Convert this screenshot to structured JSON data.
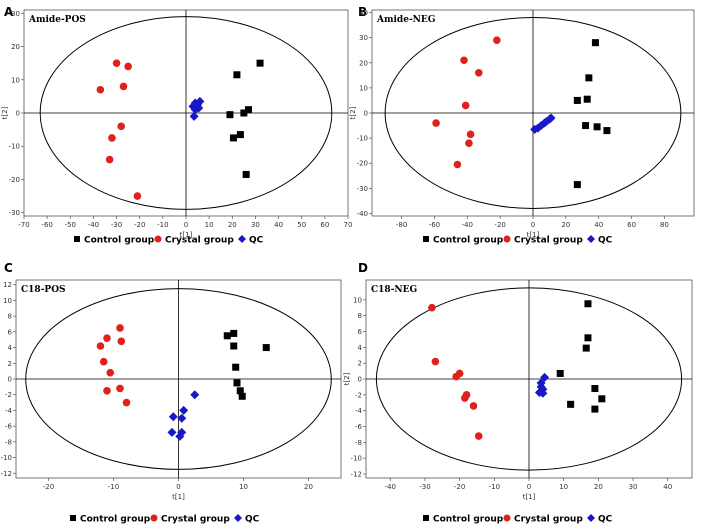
{
  "legend_colors": {
    "control": "#000000",
    "crystal": "#e0201b",
    "qc": "#1818c8"
  },
  "chart_data": [
    {
      "type": "scatter",
      "panel": "A",
      "title": "Amide-POS",
      "xlabel": "t[1]",
      "ylabel": "t[2]",
      "xlim": [
        -70,
        70
      ],
      "ylim": [
        -31,
        31
      ],
      "xticks": [
        -70,
        -60,
        -50,
        -40,
        -30,
        -20,
        -10,
        0,
        10,
        20,
        30,
        40,
        50,
        60,
        70
      ],
      "yticks": [
        -30,
        -20,
        -10,
        0,
        10,
        20,
        30
      ],
      "ellipse": {
        "rx": 63,
        "ry": 29
      },
      "legend": [
        "Control group",
        "Crystal group",
        "QC"
      ],
      "series": [
        {
          "name": "Control group",
          "points": [
            [
              32,
              15
            ],
            [
              22,
              11.5
            ],
            [
              19,
              -0.5
            ],
            [
              25,
              0
            ],
            [
              27,
              1
            ],
            [
              20.5,
              -7.5
            ],
            [
              23.5,
              -6.5
            ],
            [
              26,
              -18.5
            ]
          ]
        },
        {
          "name": "Crystal group",
          "points": [
            [
              -30,
              15
            ],
            [
              -25,
              14
            ],
            [
              -37,
              7
            ],
            [
              -27,
              8
            ],
            [
              -28,
              -4
            ],
            [
              -32,
              -7.5
            ],
            [
              -33,
              -14
            ],
            [
              -21,
              -25
            ]
          ]
        },
        {
          "name": "QC",
          "points": [
            [
              3,
              2
            ],
            [
              4,
              3
            ],
            [
              5,
              2.5
            ],
            [
              6,
              3.5
            ],
            [
              5.5,
              1.5
            ],
            [
              4,
              1
            ],
            [
              3.5,
              -1
            ]
          ]
        }
      ]
    },
    {
      "type": "scatter",
      "panel": "B",
      "title": "Amide-NEG",
      "xlabel": "t[1]",
      "ylabel": "t[2]",
      "xlim": [
        -98,
        98
      ],
      "ylim": [
        -41,
        41
      ],
      "xticks": [
        -80,
        -60,
        -40,
        -20,
        0,
        20,
        40,
        60,
        80
      ],
      "yticks": [
        -40,
        -30,
        -20,
        -10,
        0,
        10,
        20,
        30,
        40
      ],
      "ellipse": {
        "rx": 90,
        "ry": 38
      },
      "legend": [
        "Control group",
        "Crystal group",
        "QC"
      ],
      "series": [
        {
          "name": "Control group",
          "points": [
            [
              38,
              28
            ],
            [
              34,
              14
            ],
            [
              33,
              5.5
            ],
            [
              27,
              5
            ],
            [
              32,
              -5
            ],
            [
              39,
              -5.5
            ],
            [
              45,
              -7
            ],
            [
              27,
              -28.5
            ]
          ]
        },
        {
          "name": "Crystal group",
          "points": [
            [
              -22,
              29
            ],
            [
              -42,
              21
            ],
            [
              -33,
              16
            ],
            [
              -41,
              3
            ],
            [
              -38,
              -8.5
            ],
            [
              -39,
              -12
            ],
            [
              -59,
              -4
            ],
            [
              -46,
              -20.5
            ]
          ]
        },
        {
          "name": "QC",
          "points": [
            [
              1,
              -6.5
            ],
            [
              3,
              -6
            ],
            [
              5,
              -5
            ],
            [
              7,
              -4
            ],
            [
              8,
              -3.5
            ],
            [
              10,
              -2.5
            ],
            [
              11,
              -2
            ]
          ]
        }
      ]
    },
    {
      "type": "scatter",
      "panel": "C",
      "title": "C18-POS",
      "xlabel": "t[1]",
      "ylabel": "t[2]",
      "xlim": [
        -25,
        25
      ],
      "ylim": [
        -12.6,
        12.6
      ],
      "xticks": [
        -20,
        -10,
        0,
        10,
        20
      ],
      "yticks": [
        -12,
        -10,
        -8,
        -6,
        -4,
        -2,
        0,
        2,
        4,
        6,
        8,
        10,
        12
      ],
      "ellipse": {
        "rx": 23.5,
        "ry": 11.5
      },
      "legend": [
        "Control group",
        "Crystal group",
        "QC"
      ],
      "series": [
        {
          "name": "Control group",
          "points": [
            [
              7.5,
              5.5
            ],
            [
              8.5,
              5.8
            ],
            [
              8.5,
              4.2
            ],
            [
              13.5,
              4
            ],
            [
              8.8,
              1.5
            ],
            [
              9,
              -0.5
            ],
            [
              9.5,
              -1.5
            ],
            [
              9.8,
              -2.2
            ]
          ]
        },
        {
          "name": "Crystal group",
          "points": [
            [
              -9,
              6.5
            ],
            [
              -11,
              5.2
            ],
            [
              -8.8,
              4.8
            ],
            [
              -12,
              4.2
            ],
            [
              -11.5,
              2.2
            ],
            [
              -10.5,
              0.8
            ],
            [
              -11,
              -1.5
            ],
            [
              -9,
              -1.2
            ],
            [
              -8,
              -3
            ]
          ]
        },
        {
          "name": "QC",
          "points": [
            [
              2.5,
              -2
            ],
            [
              0.8,
              -4
            ],
            [
              0.5,
              -5
            ],
            [
              -0.8,
              -4.8
            ],
            [
              0.5,
              -6.8
            ],
            [
              -1,
              -6.8
            ],
            [
              0.2,
              -7.3
            ]
          ]
        }
      ]
    },
    {
      "type": "scatter",
      "panel": "D",
      "title": "C18-NEG",
      "xlabel": "t[1]",
      "ylabel": "t[2]",
      "xlim": [
        -47,
        47
      ],
      "ylim": [
        -12.5,
        12.5
      ],
      "xticks": [
        -40,
        -30,
        -20,
        -10,
        0,
        10,
        20,
        30,
        40
      ],
      "yticks": [
        -12,
        -10,
        -8,
        -6,
        -4,
        -2,
        0,
        2,
        4,
        6,
        8,
        10
      ],
      "ellipse": {
        "rx": 44,
        "ry": 11.5
      },
      "legend": [
        "Control group",
        "Crystal group",
        "QC"
      ],
      "series": [
        {
          "name": "Control group",
          "points": [
            [
              17,
              9.5
            ],
            [
              17,
              5.2
            ],
            [
              16.5,
              3.9
            ],
            [
              9,
              0.7
            ],
            [
              12,
              -3.2
            ],
            [
              19,
              -1.2
            ],
            [
              21,
              -2.5
            ],
            [
              19,
              -3.8
            ]
          ]
        },
        {
          "name": "Crystal group",
          "points": [
            [
              -28,
              9
            ],
            [
              -27,
              2.2
            ],
            [
              -21,
              0.3
            ],
            [
              -20,
              0.7
            ],
            [
              -18,
              -2
            ],
            [
              -18.5,
              -2.4
            ],
            [
              -16,
              -3.4
            ],
            [
              -14.5,
              -7.2
            ]
          ]
        },
        {
          "name": "QC",
          "points": [
            [
              4.5,
              0.2
            ],
            [
              3.5,
              -0.5
            ],
            [
              3.5,
              -1
            ],
            [
              4,
              -1.3
            ],
            [
              3,
              -1.7
            ],
            [
              4,
              -1.8
            ]
          ]
        }
      ]
    }
  ]
}
